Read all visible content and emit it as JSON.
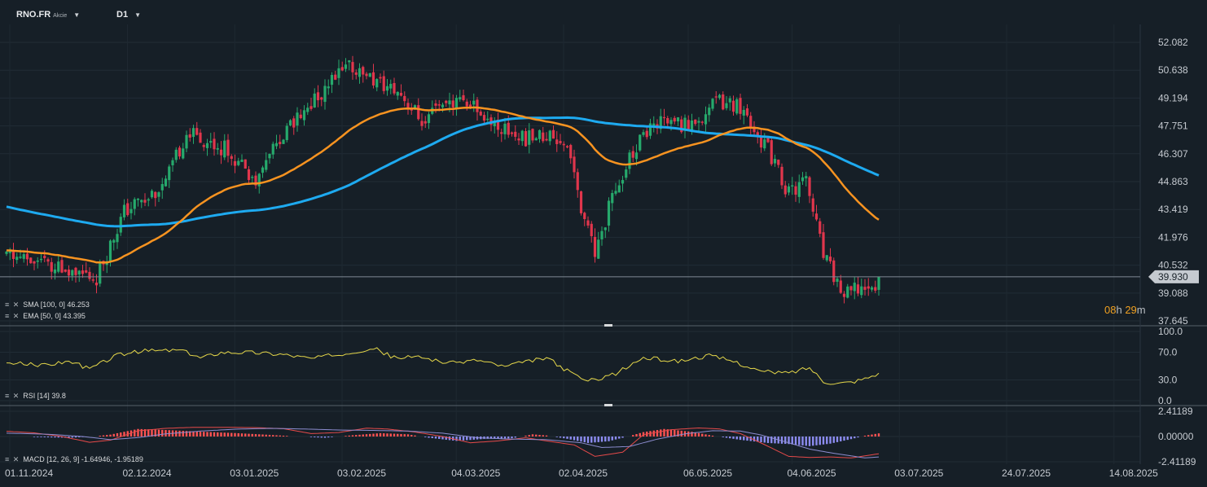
{
  "header": {
    "symbol": "RNO.FR",
    "instrument_type": "Akcie",
    "timeframe": "D1",
    "caret_glyph": "▼"
  },
  "legend": {
    "sma": "SMA [100, 0] 46.253",
    "ema": "EMA [50, 0] 43.395",
    "rsi": "RSI [14] 39.8",
    "macd": "MACD [12, 26, 9] -1.64946, -1.95189",
    "icon_glyphs": "≡ ✕"
  },
  "countdown": {
    "hours": "08",
    "h_unit": "h ",
    "minutes": "29",
    "m_unit": "m"
  },
  "colors": {
    "background": "#161f27",
    "up": "#26a96c",
    "down": "#e0364c",
    "sma": "#1eaaf0",
    "ema": "#f79320",
    "rsi": "#e6d84a",
    "macd_line": "#8c8ccf",
    "macd_signal": "#e64a4a",
    "hist_pos": "#ff5252",
    "hist_neg": "#8c8cf0",
    "price_tag": "#c5cad0"
  },
  "chart_data": [
    {
      "type": "candlestick",
      "title": "RNO.FR Akcie D1",
      "yticks": [
        "52.082",
        "50.638",
        "49.194",
        "47.751",
        "46.307",
        "44.863",
        "43.419",
        "41.976",
        "40.532",
        "39.088",
        "37.645"
      ],
      "ylim": [
        37.645,
        52.082
      ],
      "last_price": 39.93,
      "last_price_label": "39.930",
      "xticks": [
        "01.11.2024",
        "02.12.2024",
        "03.01.2025",
        "03.02.2025",
        "04.03.2025",
        "02.04.2025",
        "06.05.2025",
        "04.06.2025",
        "03.07.2025",
        "24.07.2025",
        "14.08.2025"
      ],
      "series": [
        {
          "name": "SMA [100, 0]",
          "value": 46.253
        },
        {
          "name": "EMA [50, 0]",
          "value": 43.395
        }
      ],
      "path_points": [
        [
          0,
          41.1
        ],
        [
          12,
          40.5
        ],
        [
          21,
          40.0
        ],
        [
          26,
          39.9
        ],
        [
          34,
          43.3
        ],
        [
          46,
          44.8
        ],
        [
          52,
          47.4
        ],
        [
          64,
          46.5
        ],
        [
          72,
          45.0
        ],
        [
          79,
          47.0
        ],
        [
          89,
          49.1
        ],
        [
          99,
          50.9
        ],
        [
          106,
          50.1
        ],
        [
          114,
          49.4
        ],
        [
          121,
          47.8
        ],
        [
          127,
          49.2
        ],
        [
          134,
          48.9
        ],
        [
          140,
          48.0
        ],
        [
          149,
          47.1
        ],
        [
          158,
          47.3
        ],
        [
          162,
          46.8
        ],
        [
          166,
          43.5
        ],
        [
          170,
          41.0
        ],
        [
          176,
          44.7
        ],
        [
          182,
          46.7
        ],
        [
          189,
          48.0
        ],
        [
          197,
          47.8
        ],
        [
          206,
          49.0
        ],
        [
          212,
          48.8
        ],
        [
          220,
          46.5
        ],
        [
          226,
          44.2
        ],
        [
          231,
          44.9
        ],
        [
          236,
          41.0
        ],
        [
          242,
          38.9
        ],
        [
          245,
          39.2
        ],
        [
          249,
          39.5
        ],
        [
          252,
          38.7
        ]
      ]
    },
    {
      "type": "line",
      "title": "RSI [14]",
      "yticks": [
        "100.0",
        "70.0",
        "30.0",
        "0.0"
      ],
      "ylim": [
        0,
        100
      ],
      "last_value": 39.8,
      "points": [
        [
          0,
          55
        ],
        [
          10,
          51
        ],
        [
          18,
          57
        ],
        [
          24,
          46
        ],
        [
          32,
          66
        ],
        [
          40,
          72
        ],
        [
          50,
          73
        ],
        [
          56,
          62
        ],
        [
          62,
          70
        ],
        [
          70,
          70
        ],
        [
          80,
          67
        ],
        [
          88,
          61
        ],
        [
          96,
          67
        ],
        [
          106,
          76
        ],
        [
          112,
          62
        ],
        [
          120,
          63
        ],
        [
          128,
          54
        ],
        [
          136,
          59
        ],
        [
          144,
          49
        ],
        [
          150,
          56
        ],
        [
          156,
          62
        ],
        [
          162,
          43
        ],
        [
          168,
          28
        ],
        [
          176,
          39
        ],
        [
          184,
          62
        ],
        [
          194,
          57
        ],
        [
          203,
          65
        ],
        [
          210,
          57
        ],
        [
          218,
          42
        ],
        [
          226,
          40
        ],
        [
          232,
          48
        ],
        [
          236,
          28
        ],
        [
          240,
          25
        ],
        [
          244,
          27
        ],
        [
          248,
          32
        ],
        [
          252,
          39.8
        ]
      ]
    },
    {
      "type": "bar",
      "title": "MACD [12, 26, 9]",
      "yticks": [
        "2.41189",
        "0.00000",
        "-2.41189"
      ],
      "ylim": [
        -2.41189,
        2.41189
      ],
      "series": [
        {
          "name": "MACD",
          "last": -1.64946
        },
        {
          "name": "Signal",
          "last": -1.95189
        }
      ],
      "histogram_points": [
        [
          0,
          0
        ],
        [
          18,
          -0.12
        ],
        [
          24,
          -0.03
        ],
        [
          30,
          0.18
        ],
        [
          38,
          0.72
        ],
        [
          46,
          0.62
        ],
        [
          56,
          0.46
        ],
        [
          66,
          0.33
        ],
        [
          76,
          0.16
        ],
        [
          84,
          0.0
        ],
        [
          92,
          -0.12
        ],
        [
          100,
          0.12
        ],
        [
          108,
          0.32
        ],
        [
          116,
          0.21
        ],
        [
          122,
          -0.12
        ],
        [
          130,
          -0.42
        ],
        [
          138,
          -0.23
        ],
        [
          146,
          -0.17
        ],
        [
          152,
          0.21
        ],
        [
          156,
          0.1
        ],
        [
          162,
          -0.22
        ],
        [
          168,
          -0.62
        ],
        [
          174,
          -0.45
        ],
        [
          180,
          0.05
        ],
        [
          184,
          0.42
        ],
        [
          190,
          0.72
        ],
        [
          198,
          0.45
        ],
        [
          204,
          0.08
        ],
        [
          212,
          -0.32
        ],
        [
          220,
          -0.62
        ],
        [
          226,
          -0.72
        ],
        [
          232,
          -0.92
        ],
        [
          238,
          -0.68
        ],
        [
          244,
          -0.25
        ],
        [
          248,
          0.08
        ],
        [
          252,
          0.3
        ]
      ],
      "macd_points": [
        [
          0,
          0.5
        ],
        [
          8,
          0.35
        ],
        [
          16,
          0.0
        ],
        [
          24,
          -0.55
        ],
        [
          30,
          -0.35
        ],
        [
          38,
          0.55
        ],
        [
          46,
          0.78
        ],
        [
          54,
          0.88
        ],
        [
          62,
          0.88
        ],
        [
          72,
          0.85
        ],
        [
          80,
          0.75
        ],
        [
          88,
          0.28
        ],
        [
          96,
          0.38
        ],
        [
          104,
          0.8
        ],
        [
          110,
          0.72
        ],
        [
          118,
          0.43
        ],
        [
          126,
          0.0
        ],
        [
          134,
          -0.6
        ],
        [
          142,
          -0.42
        ],
        [
          150,
          -0.12
        ],
        [
          156,
          -0.42
        ],
        [
          164,
          -0.8
        ],
        [
          170,
          -1.9
        ],
        [
          178,
          -1.5
        ],
        [
          184,
          0.18
        ],
        [
          192,
          0.65
        ],
        [
          200,
          0.82
        ],
        [
          206,
          0.72
        ],
        [
          212,
          0.28
        ],
        [
          218,
          -0.62
        ],
        [
          226,
          -1.9
        ],
        [
          232,
          -2.0
        ],
        [
          238,
          -1.95
        ],
        [
          244,
          -2.05
        ],
        [
          248,
          -1.85
        ],
        [
          252,
          -1.64946
        ]
      ],
      "signal_points": [
        [
          0,
          0.32
        ],
        [
          12,
          0.22
        ],
        [
          22,
          0.0
        ],
        [
          30,
          -0.3
        ],
        [
          38,
          -0.1
        ],
        [
          46,
          0.25
        ],
        [
          56,
          0.52
        ],
        [
          66,
          0.7
        ],
        [
          76,
          0.78
        ],
        [
          86,
          0.72
        ],
        [
          96,
          0.62
        ],
        [
          106,
          0.58
        ],
        [
          116,
          0.52
        ],
        [
          126,
          0.32
        ],
        [
          136,
          -0.12
        ],
        [
          146,
          -0.25
        ],
        [
          156,
          -0.3
        ],
        [
          166,
          -0.6
        ],
        [
          172,
          -1.05
        ],
        [
          180,
          -0.95
        ],
        [
          188,
          -0.25
        ],
        [
          196,
          0.25
        ],
        [
          204,
          0.55
        ],
        [
          212,
          0.52
        ],
        [
          218,
          0.15
        ],
        [
          226,
          -0.6
        ],
        [
          232,
          -1.2
        ],
        [
          238,
          -1.55
        ],
        [
          244,
          -1.85
        ],
        [
          248,
          -2.05
        ],
        [
          252,
          -1.95189
        ]
      ]
    }
  ]
}
